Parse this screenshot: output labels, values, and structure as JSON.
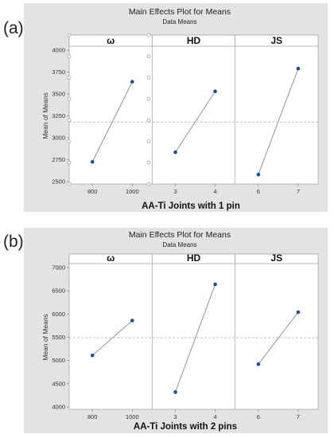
{
  "figure_labels": [
    "(a)",
    "(b)"
  ],
  "chart_data": [
    {
      "type": "line",
      "title": "Main Effects Plot for Means",
      "subtitle": "Data Means",
      "xlabel": "AA-Ti Joints with 1 pin",
      "ylabel": "Mean of Means",
      "ylim": [
        2500,
        4000
      ],
      "yticks": [
        2500,
        2750,
        3000,
        3250,
        3500,
        3750,
        4000
      ],
      "reference_line": 3180,
      "facets": [
        {
          "name": "ω",
          "x": [
            "800",
            "1000"
          ],
          "values": [
            2725,
            3640
          ]
        },
        {
          "name": "HD",
          "x": [
            "3",
            "4"
          ],
          "values": [
            2835,
            3530
          ]
        },
        {
          "name": "JS",
          "x": [
            "6",
            "7"
          ],
          "values": [
            2580,
            3790
          ]
        }
      ]
    },
    {
      "type": "line",
      "title": "Main Effects Plot for Means",
      "subtitle": "Data Means",
      "xlabel": "AA-Ti Joints with 2 pins",
      "ylabel": "Mean of Means",
      "ylim": [
        4000,
        7000
      ],
      "yticks": [
        4000,
        4500,
        5000,
        5500,
        6000,
        6500,
        7000
      ],
      "reference_line": 5490,
      "facets": [
        {
          "name": "ω",
          "x": [
            "800",
            "1000"
          ],
          "values": [
            5110,
            5860
          ]
        },
        {
          "name": "HD",
          "x": [
            "3",
            "4"
          ],
          "values": [
            4320,
            6640
          ]
        },
        {
          "name": "JS",
          "x": [
            "6",
            "7"
          ],
          "values": [
            4920,
            6040
          ]
        }
      ]
    }
  ]
}
